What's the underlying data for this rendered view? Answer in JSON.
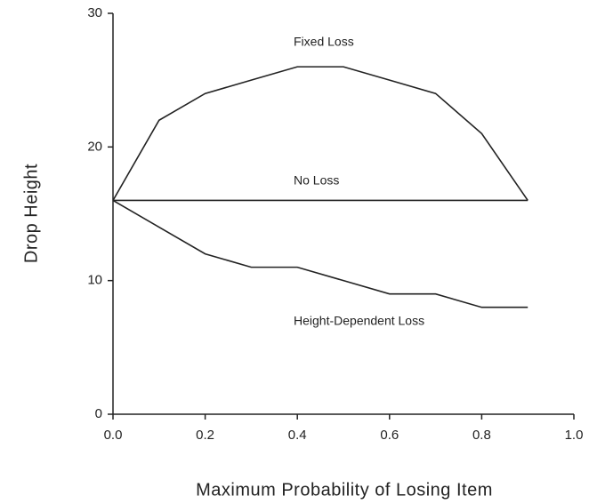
{
  "chart_data": {
    "type": "line",
    "x_label": "Maximum Probability of Losing Item",
    "y_label": "Drop Height",
    "x": [
      0,
      0.1,
      0.2,
      0.3,
      0.4,
      0.5,
      0.6,
      0.7,
      0.8,
      0.9
    ],
    "series": [
      {
        "name": "Fixed Loss",
        "color": "#222222",
        "values": [
          16,
          22,
          24,
          25,
          26,
          26,
          25,
          24,
          21,
          16
        ]
      },
      {
        "name": "No Loss",
        "color": "#222222",
        "values": [
          16,
          16,
          16,
          16,
          16,
          16,
          16,
          16,
          16,
          16
        ]
      },
      {
        "name": "Height-Dependent Loss",
        "color": "#222222",
        "values": [
          16,
          14,
          12,
          11,
          11,
          10,
          9,
          9,
          8,
          8
        ]
      }
    ],
    "xlim": [
      0,
      1
    ],
    "ylim": [
      0,
      30
    ],
    "xticks": [
      {
        "value": 0,
        "label": "0.0"
      },
      0.2,
      0.4,
      0.6,
      0.8,
      {
        "value": 1,
        "label": "1.0"
      }
    ],
    "yticks": [
      0,
      10,
      20,
      30
    ],
    "grid": false
  }
}
